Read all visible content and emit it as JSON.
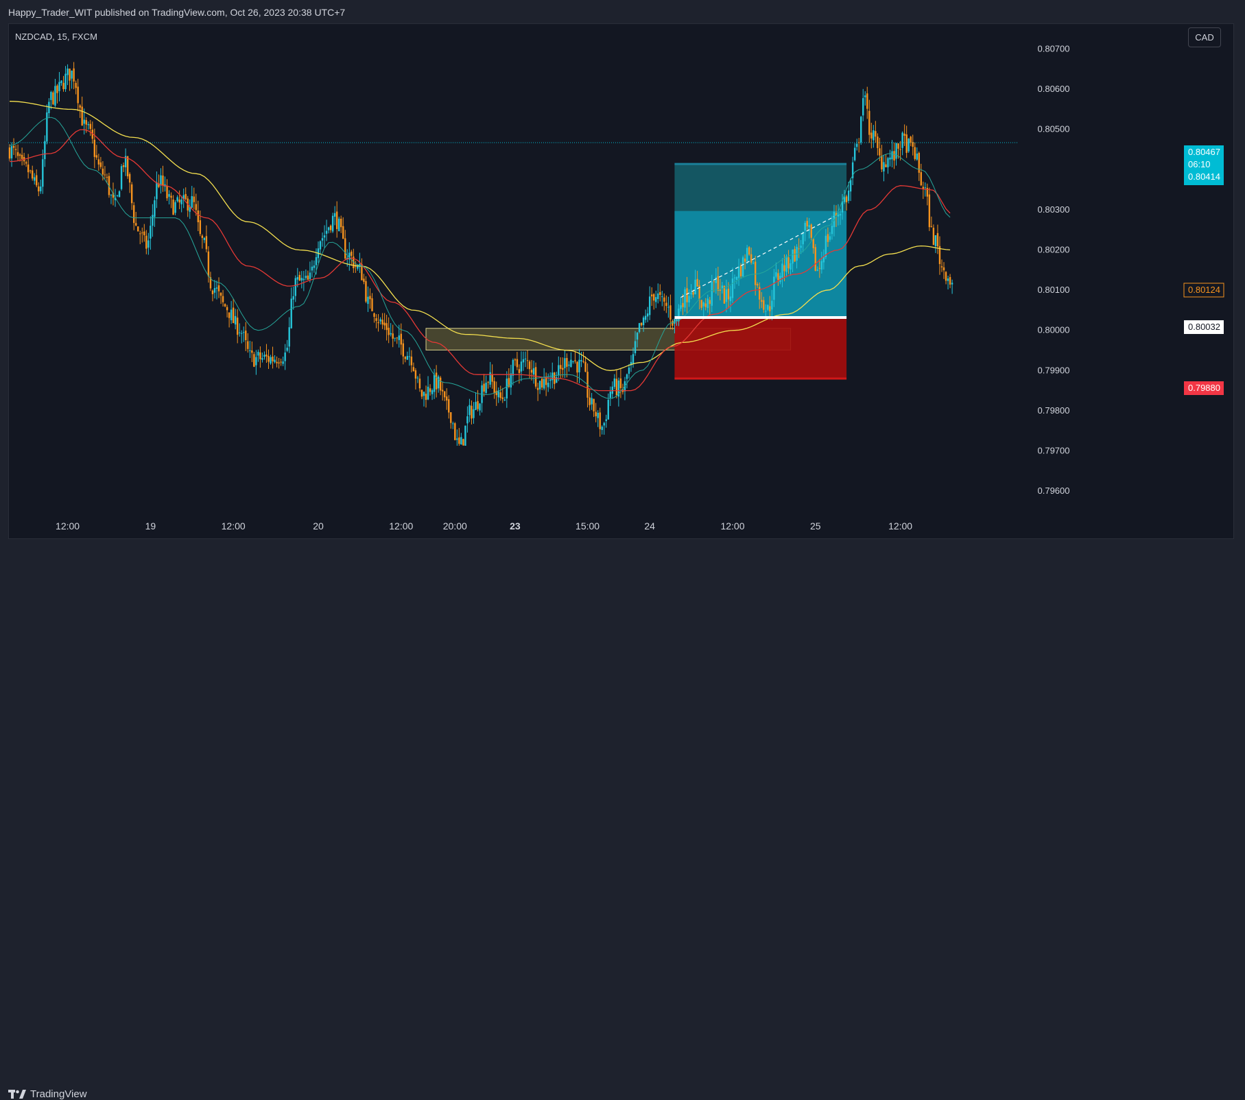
{
  "header": {
    "publisher_text": "Happy_Trader_WIT published on TradingView.com, Oct 26, 2023 20:38 UTC+7"
  },
  "chart_header": {
    "symbol_line": "NZDCAD, 15, FXCM",
    "currency_button": "CAD"
  },
  "footer": {
    "brand": "TradingView",
    "logo_icon": "tradingview-logo-icon"
  },
  "colors": {
    "background": "#131722",
    "frame": "#1e222d",
    "candle_up": "#26c6da",
    "candle_down": "#f7931e",
    "ema_fast": "#26a69a",
    "ema_mid": "#e53935",
    "ema_slow": "#f5e04f",
    "profit_zone": "#0e8aa3",
    "target_zone": "#145a66",
    "loss_zone": "#a30d0d",
    "supply_zone": "#6b6438",
    "price_label": "#00bcd4",
    "stop_label": "#f23645",
    "close_label": "#f7931e"
  },
  "chart_data": {
    "type": "candlestick",
    "symbol": "NZDCAD",
    "timeframe": "15",
    "source": "FXCM",
    "currency": "CAD",
    "ylim": [
      0.7955,
      0.8075
    ],
    "y_ticks": [
      "0.80700",
      "0.80600",
      "0.80500",
      "0.80300",
      "0.80200",
      "0.80100",
      "0.80000",
      "0.79900",
      "0.79800",
      "0.79700",
      "0.79600"
    ],
    "x_ticks": [
      {
        "label": "12:00",
        "bold": false,
        "index": 28
      },
      {
        "label": "19",
        "bold": false,
        "index": 68
      },
      {
        "label": "12:00",
        "bold": false,
        "index": 108
      },
      {
        "label": "20",
        "bold": false,
        "index": 149
      },
      {
        "label": "12:00",
        "bold": false,
        "index": 189
      },
      {
        "label": "20:00",
        "bold": false,
        "index": 215
      },
      {
        "label": "23",
        "bold": true,
        "index": 244
      },
      {
        "label": "15:00",
        "bold": false,
        "index": 279
      },
      {
        "label": "24",
        "bold": false,
        "index": 309
      },
      {
        "label": "12:00",
        "bold": false,
        "index": 349
      },
      {
        "label": "25",
        "bold": false,
        "index": 389
      },
      {
        "label": "12:00",
        "bold": false,
        "index": 430
      }
    ],
    "current_price": {
      "value": "0.80467",
      "countdown": "06:10",
      "price": 0.80467
    },
    "price_labels": [
      {
        "value": "0.80414",
        "price": 0.80414,
        "role": "target"
      },
      {
        "value": "0.80124",
        "price": 0.80124,
        "role": "last-close"
      },
      {
        "value": "0.80032",
        "price": 0.80032,
        "role": "entry"
      },
      {
        "value": "0.79880",
        "price": 0.7988,
        "role": "stop"
      }
    ],
    "position": {
      "entry": 0.80032,
      "target": 0.80414,
      "stop": 0.7988,
      "start_index": 321,
      "end_index": 404,
      "ongoing_top": 0.80297
    },
    "supply_zone": {
      "top": 0.80005,
      "bottom": 0.79951,
      "start_index": 201,
      "end_index": 377
    },
    "trend_line": {
      "start": {
        "index": 324,
        "price": 0.80082
      },
      "end": {
        "index": 398,
        "price": 0.80283
      }
    },
    "anchors": [
      [
        0,
        0.8045
      ],
      [
        8,
        0.804
      ],
      [
        14,
        0.8035
      ],
      [
        20,
        0.8058
      ],
      [
        30,
        0.8064
      ],
      [
        37,
        0.805
      ],
      [
        45,
        0.8039
      ],
      [
        51,
        0.8031
      ],
      [
        55,
        0.8042
      ],
      [
        62,
        0.8025
      ],
      [
        66,
        0.8021
      ],
      [
        72,
        0.8037
      ],
      [
        79,
        0.8031
      ],
      [
        88,
        0.8032
      ],
      [
        93,
        0.8022
      ],
      [
        98,
        0.8011
      ],
      [
        104,
        0.8006
      ],
      [
        110,
        0.8001
      ],
      [
        117,
        0.7993
      ],
      [
        126,
        0.7993
      ],
      [
        133,
        0.7994
      ],
      [
        138,
        0.8012
      ],
      [
        144,
        0.8012
      ],
      [
        150,
        0.8023
      ],
      [
        157,
        0.8028
      ],
      [
        163,
        0.8019
      ],
      [
        169,
        0.8015
      ],
      [
        174,
        0.8006
      ],
      [
        181,
        0.8001
      ],
      [
        187,
        0.7997
      ],
      [
        193,
        0.7994
      ],
      [
        199,
        0.7984
      ],
      [
        206,
        0.7987
      ],
      [
        212,
        0.798
      ],
      [
        217,
        0.7971
      ],
      [
        223,
        0.798
      ],
      [
        231,
        0.7988
      ],
      [
        237,
        0.7983
      ],
      [
        244,
        0.7991
      ],
      [
        250,
        0.7992
      ],
      [
        256,
        0.7987
      ],
      [
        264,
        0.7989
      ],
      [
        270,
        0.7993
      ],
      [
        276,
        0.7991
      ],
      [
        281,
        0.7981
      ],
      [
        286,
        0.7976
      ],
      [
        291,
        0.7986
      ],
      [
        296,
        0.7985
      ],
      [
        299,
        0.799
      ],
      [
        305,
        0.8001
      ],
      [
        311,
        0.8009
      ],
      [
        317,
        0.8006
      ],
      [
        321,
        0.8002
      ],
      [
        325,
        0.8008
      ],
      [
        330,
        0.8011
      ],
      [
        336,
        0.8006
      ],
      [
        341,
        0.8012
      ],
      [
        346,
        0.8008
      ],
      [
        352,
        0.8015
      ],
      [
        357,
        0.802
      ],
      [
        362,
        0.8009
      ],
      [
        366,
        0.8005
      ],
      [
        370,
        0.8013
      ],
      [
        374,
        0.8016
      ],
      [
        379,
        0.8019
      ],
      [
        385,
        0.8025
      ],
      [
        390,
        0.8015
      ],
      [
        395,
        0.8023
      ],
      [
        399,
        0.8029
      ],
      [
        404,
        0.8033
      ],
      [
        409,
        0.8045
      ],
      [
        412,
        0.8058
      ],
      [
        416,
        0.8049
      ],
      [
        421,
        0.8042
      ],
      [
        426,
        0.8043
      ],
      [
        431,
        0.8047
      ],
      [
        436,
        0.8045
      ],
      [
        441,
        0.8036
      ],
      [
        446,
        0.8023
      ],
      [
        451,
        0.8015
      ],
      [
        455,
        0.8012
      ]
    ],
    "ema_fast": [
      [
        0,
        0.8046
      ],
      [
        20,
        0.8053
      ],
      [
        40,
        0.804
      ],
      [
        60,
        0.8028
      ],
      [
        80,
        0.8028
      ],
      [
        100,
        0.8012
      ],
      [
        120,
        0.8
      ],
      [
        140,
        0.8006
      ],
      [
        155,
        0.8022
      ],
      [
        170,
        0.8016
      ],
      [
        190,
        0.8
      ],
      [
        210,
        0.7987
      ],
      [
        230,
        0.7984
      ],
      [
        250,
        0.7988
      ],
      [
        270,
        0.7989
      ],
      [
        290,
        0.7983
      ],
      [
        305,
        0.799
      ],
      [
        320,
        0.8002
      ],
      [
        340,
        0.801
      ],
      [
        360,
        0.8014
      ],
      [
        380,
        0.8019
      ],
      [
        395,
        0.8026
      ],
      [
        410,
        0.804
      ],
      [
        425,
        0.8044
      ],
      [
        440,
        0.804
      ],
      [
        455,
        0.8028
      ]
    ],
    "ema_mid": [
      [
        0,
        0.8042
      ],
      [
        20,
        0.8044
      ],
      [
        35,
        0.805
      ],
      [
        55,
        0.8043
      ],
      [
        75,
        0.8036
      ],
      [
        95,
        0.8028
      ],
      [
        115,
        0.8016
      ],
      [
        135,
        0.8011
      ],
      [
        150,
        0.8013
      ],
      [
        165,
        0.8018
      ],
      [
        185,
        0.8007
      ],
      [
        205,
        0.7997
      ],
      [
        225,
        0.7989
      ],
      [
        245,
        0.7989
      ],
      [
        265,
        0.7988
      ],
      [
        285,
        0.7985
      ],
      [
        300,
        0.7985
      ],
      [
        320,
        0.7996
      ],
      [
        340,
        0.8004
      ],
      [
        360,
        0.801
      ],
      [
        380,
        0.8014
      ],
      [
        400,
        0.802
      ],
      [
        415,
        0.803
      ],
      [
        430,
        0.8036
      ],
      [
        445,
        0.8035
      ],
      [
        455,
        0.8029
      ]
    ],
    "ema_slow": [
      [
        0,
        0.8057
      ],
      [
        30,
        0.8055
      ],
      [
        60,
        0.8048
      ],
      [
        90,
        0.8039
      ],
      [
        115,
        0.8027
      ],
      [
        140,
        0.802
      ],
      [
        170,
        0.8016
      ],
      [
        195,
        0.8005
      ],
      [
        220,
        0.7999
      ],
      [
        245,
        0.7998
      ],
      [
        270,
        0.7995
      ],
      [
        290,
        0.799
      ],
      [
        305,
        0.7992
      ],
      [
        325,
        0.7997
      ],
      [
        350,
        0.8
      ],
      [
        375,
        0.8004
      ],
      [
        395,
        0.801
      ],
      [
        410,
        0.8016
      ],
      [
        425,
        0.8019
      ],
      [
        440,
        0.8021
      ],
      [
        455,
        0.802
      ]
    ]
  }
}
